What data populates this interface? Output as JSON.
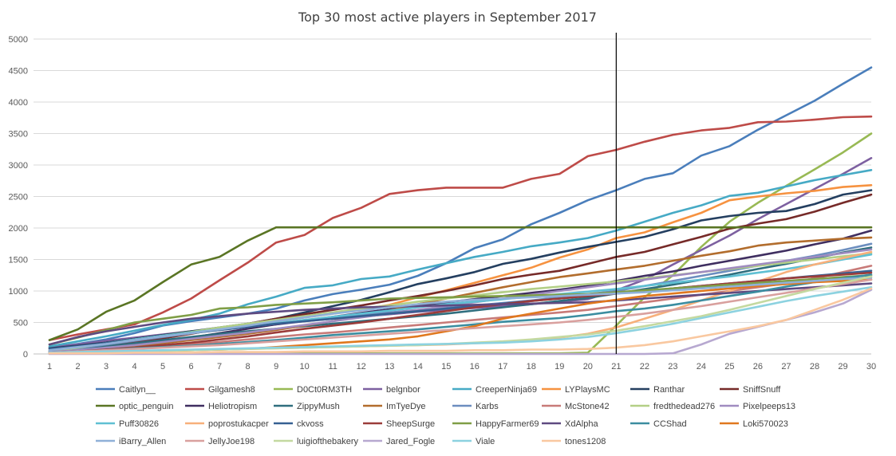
{
  "chart_data": {
    "type": "line",
    "title": "Top 30 most active players in September 2017",
    "xlabel": "",
    "ylabel": "",
    "x": [
      1,
      2,
      3,
      4,
      5,
      6,
      7,
      8,
      9,
      10,
      11,
      12,
      13,
      14,
      15,
      16,
      17,
      18,
      19,
      20,
      21,
      22,
      23,
      24,
      25,
      26,
      27,
      28,
      29,
      30
    ],
    "ylim": [
      0,
      5000
    ],
    "yticks": [
      0,
      500,
      1000,
      1500,
      2000,
      2500,
      3000,
      3500,
      4000,
      4500,
      5000
    ],
    "grid": true,
    "legend": "bottom",
    "vertical_marker_x": 21,
    "series": [
      {
        "name": "Caitlyn__",
        "color": "#4a7ebb",
        "values": [
          100,
          160,
          230,
          330,
          450,
          520,
          580,
          640,
          720,
          850,
          950,
          1020,
          1100,
          1240,
          1440,
          1680,
          1820,
          2060,
          2240,
          2440,
          2600,
          2780,
          2870,
          3150,
          3300,
          3560,
          3790,
          4020,
          4290,
          4550
        ]
      },
      {
        "name": "Gilgamesh8",
        "color": "#be4b48",
        "values": [
          220,
          310,
          390,
          470,
          660,
          880,
          1170,
          1450,
          1770,
          1890,
          2160,
          2320,
          2540,
          2600,
          2640,
          2640,
          2640,
          2780,
          2860,
          3140,
          3240,
          3370,
          3480,
          3550,
          3590,
          3680,
          3690,
          3720,
          3760,
          3770
        ]
      },
      {
        "name": "D0Ct0RM3TH",
        "color": "#98b954",
        "values": [
          10,
          10,
          10,
          10,
          10,
          10,
          10,
          10,
          10,
          10,
          10,
          10,
          10,
          10,
          10,
          10,
          10,
          10,
          10,
          20,
          450,
          900,
          1250,
          1700,
          2100,
          2400,
          2670,
          2930,
          3200,
          3500
        ]
      },
      {
        "name": "belgnbor",
        "color": "#7d60a0",
        "values": [
          100,
          150,
          210,
          260,
          310,
          360,
          400,
          430,
          470,
          520,
          560,
          590,
          630,
          670,
          700,
          730,
          760,
          790,
          830,
          870,
          1010,
          1180,
          1420,
          1650,
          1880,
          2140,
          2380,
          2620,
          2860,
          3110
        ]
      },
      {
        "name": "CreeperNinja69",
        "color": "#46aac5",
        "values": [
          120,
          200,
          280,
          370,
          460,
          540,
          640,
          790,
          910,
          1050,
          1090,
          1190,
          1230,
          1340,
          1440,
          1540,
          1620,
          1710,
          1770,
          1840,
          1960,
          2100,
          2240,
          2360,
          2510,
          2560,
          2660,
          2760,
          2840,
          2920
        ]
      },
      {
        "name": "LYPlaysMC",
        "color": "#f69240",
        "values": [
          60,
          110,
          160,
          220,
          280,
          340,
          400,
          450,
          520,
          580,
          640,
          700,
          780,
          900,
          1010,
          1130,
          1250,
          1370,
          1530,
          1660,
          1840,
          1930,
          2090,
          2240,
          2440,
          2500,
          2550,
          2590,
          2650,
          2680
        ]
      },
      {
        "name": "Ranthar",
        "color": "#243f60",
        "values": [
          90,
          130,
          180,
          240,
          300,
          360,
          420,
          480,
          560,
          660,
          760,
          860,
          980,
          1110,
          1200,
          1300,
          1430,
          1510,
          1610,
          1700,
          1780,
          1860,
          1980,
          2120,
          2190,
          2240,
          2270,
          2380,
          2530,
          2600
        ]
      },
      {
        "name": "SniffSnuff",
        "color": "#762a28",
        "values": [
          40,
          80,
          130,
          190,
          250,
          320,
          400,
          480,
          560,
          630,
          700,
          770,
          850,
          920,
          1000,
          1090,
          1190,
          1260,
          1320,
          1430,
          1540,
          1620,
          1740,
          1860,
          1990,
          2070,
          2140,
          2260,
          2400,
          2530
        ]
      },
      {
        "name": "optic_penguin",
        "color": "#5a7524",
        "values": [
          220,
          390,
          670,
          850,
          1140,
          1420,
          1540,
          1800,
          2010,
          2010,
          2010,
          2010,
          2010,
          2010,
          2010,
          2010,
          2010,
          2010,
          2010,
          2010,
          2010,
          2010,
          2010,
          2010,
          2010,
          2010,
          2010,
          2010,
          2010,
          2010
        ]
      },
      {
        "name": "Heliotropism",
        "color": "#3f2e60",
        "values": [
          30,
          60,
          100,
          150,
          200,
          260,
          330,
          400,
          470,
          530,
          590,
          650,
          710,
          770,
          820,
          870,
          920,
          970,
          1020,
          1080,
          1160,
          1240,
          1310,
          1400,
          1480,
          1560,
          1640,
          1740,
          1830,
          1960
        ]
      },
      {
        "name": "ZippyMush",
        "color": "#2f6e7e",
        "values": [
          30,
          70,
          120,
          170,
          220,
          270,
          320,
          360,
          400,
          440,
          480,
          520,
          560,
          600,
          640,
          690,
          740,
          790,
          840,
          890,
          960,
          1030,
          1100,
          1180,
          1260,
          1350,
          1430,
          1520,
          1610,
          1690
        ]
      },
      {
        "name": "ImTyeDye",
        "color": "#b26d2d",
        "values": [
          20,
          40,
          80,
          120,
          170,
          220,
          270,
          320,
          380,
          450,
          520,
          600,
          690,
          790,
          880,
          970,
          1060,
          1140,
          1220,
          1280,
          1340,
          1400,
          1480,
          1560,
          1630,
          1720,
          1770,
          1800,
          1830,
          1850
        ]
      },
      {
        "name": "Karbs",
        "color": "#6c8ebf",
        "values": [
          50,
          90,
          150,
          210,
          270,
          330,
          380,
          430,
          480,
          530,
          580,
          620,
          660,
          700,
          730,
          770,
          810,
          850,
          900,
          950,
          1000,
          1080,
          1160,
          1240,
          1320,
          1400,
          1480,
          1560,
          1650,
          1750
        ]
      },
      {
        "name": "McStone42",
        "color": "#c87a78",
        "values": [
          20,
          40,
          70,
          100,
          130,
          160,
          190,
          230,
          270,
          310,
          340,
          380,
          420,
          460,
          500,
          540,
          580,
          620,
          660,
          700,
          760,
          820,
          880,
          940,
          1000,
          1060,
          1120,
          1200,
          1300,
          1400
        ]
      },
      {
        "name": "fredthedead276",
        "color": "#b3cf86",
        "values": [
          40,
          100,
          170,
          230,
          290,
          350,
          420,
          480,
          540,
          600,
          660,
          720,
          770,
          830,
          880,
          930,
          980,
          1030,
          1070,
          1110,
          1150,
          1200,
          1250,
          1300,
          1350,
          1400,
          1450,
          1500,
          1550,
          1600
        ]
      },
      {
        "name": "Pixelpeeps13",
        "color": "#a08cc0",
        "values": [
          30,
          60,
          100,
          140,
          190,
          240,
          290,
          340,
          400,
          460,
          520,
          580,
          640,
          700,
          760,
          820,
          880,
          940,
          1000,
          1060,
          1120,
          1180,
          1240,
          1300,
          1360,
          1420,
          1480,
          1540,
          1600,
          1660
        ]
      },
      {
        "name": "Puff30826",
        "color": "#5fc0d3",
        "values": [
          60,
          110,
          170,
          230,
          290,
          340,
          390,
          440,
          490,
          540,
          590,
          640,
          690,
          740,
          790,
          830,
          870,
          910,
          950,
          990,
          1030,
          1080,
          1130,
          1180,
          1230,
          1290,
          1350,
          1420,
          1500,
          1580
        ]
      },
      {
        "name": "poprostukacper",
        "color": "#f7b07b",
        "values": [
          10,
          20,
          30,
          40,
          50,
          60,
          70,
          80,
          90,
          100,
          110,
          120,
          130,
          140,
          150,
          170,
          190,
          220,
          260,
          320,
          420,
          560,
          700,
          850,
          1000,
          1150,
          1300,
          1420,
          1520,
          1620
        ]
      },
      {
        "name": "ckvoss",
        "color": "#366092",
        "values": [
          80,
          120,
          170,
          220,
          280,
          330,
          380,
          430,
          480,
          520,
          560,
          600,
          640,
          680,
          720,
          760,
          800,
          840,
          880,
          920,
          960,
          1000,
          1040,
          1080,
          1120,
          1160,
          1200,
          1240,
          1280,
          1320
        ]
      },
      {
        "name": "SheepSurge",
        "color": "#9b3c3a",
        "values": [
          20,
          40,
          70,
          100,
          140,
          180,
          230,
          280,
          340,
          400,
          450,
          500,
          560,
          620,
          680,
          740,
          790,
          840,
          880,
          920,
          960,
          1000,
          1040,
          1080,
          1120,
          1160,
          1200,
          1230,
          1260,
          1290
        ]
      },
      {
        "name": "HappyFarmer69",
        "color": "#7f9e46",
        "values": [
          150,
          260,
          380,
          500,
          560,
          620,
          720,
          740,
          780,
          800,
          820,
          850,
          880,
          890,
          900,
          910,
          920,
          930,
          940,
          950,
          980,
          1010,
          1040,
          1070,
          1100,
          1130,
          1160,
          1190,
          1220,
          1250
        ]
      },
      {
        "name": "XdAlpha",
        "color": "#5e4a80",
        "values": [
          150,
          270,
          360,
          430,
          500,
          560,
          600,
          640,
          670,
          700,
          720,
          740,
          750,
          760,
          770,
          780,
          790,
          800,
          810,
          820,
          850,
          880,
          910,
          940,
          970,
          1000,
          1030,
          1060,
          1090,
          1120
        ]
      },
      {
        "name": "CCShad",
        "color": "#3b8da0",
        "values": [
          20,
          40,
          60,
          90,
          110,
          130,
          160,
          190,
          220,
          260,
          300,
          330,
          360,
          390,
          430,
          470,
          510,
          540,
          570,
          620,
          680,
          720,
          780,
          850,
          920,
          990,
          1070,
          1140,
          1200,
          1260
        ]
      },
      {
        "name": "Loki570023",
        "color": "#e0781e",
        "values": [
          10,
          20,
          30,
          40,
          50,
          60,
          70,
          80,
          110,
          140,
          170,
          200,
          230,
          280,
          360,
          440,
          560,
          640,
          720,
          800,
          860,
          920,
          960,
          1000,
          1040,
          1080,
          1110,
          1140,
          1160,
          1180
        ]
      },
      {
        "name": "iBarry_Allen",
        "color": "#8fb0d8",
        "values": [
          60,
          110,
          160,
          220,
          280,
          330,
          390,
          450,
          520,
          580,
          640,
          690,
          740,
          790,
          830,
          860,
          880,
          900,
          920,
          940,
          960,
          980,
          1010,
          1040,
          1070,
          1100,
          1130,
          1160,
          1190,
          1210
        ]
      },
      {
        "name": "JellyJoe198",
        "color": "#d9a09e",
        "values": [
          20,
          40,
          60,
          80,
          100,
          120,
          140,
          170,
          200,
          230,
          260,
          290,
          320,
          350,
          380,
          410,
          440,
          470,
          500,
          540,
          590,
          640,
          700,
          760,
          830,
          900,
          970,
          1040,
          1110,
          1180
        ]
      },
      {
        "name": "luigiofthebakery",
        "color": "#c4d9a0",
        "values": [
          10,
          20,
          30,
          40,
          50,
          60,
          70,
          80,
          90,
          100,
          110,
          120,
          130,
          140,
          160,
          180,
          200,
          230,
          270,
          310,
          370,
          440,
          520,
          600,
          700,
          810,
          920,
          1030,
          1130,
          1230
        ]
      },
      {
        "name": "Jared_Fogle",
        "color": "#b7a8d0",
        "values": [
          0,
          0,
          0,
          0,
          0,
          0,
          0,
          0,
          0,
          0,
          0,
          0,
          0,
          0,
          0,
          0,
          0,
          0,
          0,
          0,
          0,
          0,
          10,
          150,
          320,
          430,
          540,
          660,
          800,
          1020
        ]
      },
      {
        "name": "Viale",
        "color": "#8cd2e0",
        "values": [
          20,
          30,
          40,
          50,
          60,
          70,
          80,
          90,
          100,
          110,
          120,
          130,
          140,
          150,
          160,
          170,
          180,
          200,
          230,
          270,
          330,
          400,
          480,
          570,
          660,
          750,
          840,
          920,
          990,
          1060
        ]
      },
      {
        "name": "tones1208",
        "color": "#f9c8a0",
        "values": [
          10,
          10,
          10,
          20,
          20,
          20,
          30,
          30,
          30,
          40,
          40,
          40,
          50,
          50,
          50,
          60,
          60,
          70,
          70,
          80,
          100,
          140,
          200,
          280,
          360,
          440,
          540,
          700,
          860,
          1040
        ]
      }
    ]
  }
}
